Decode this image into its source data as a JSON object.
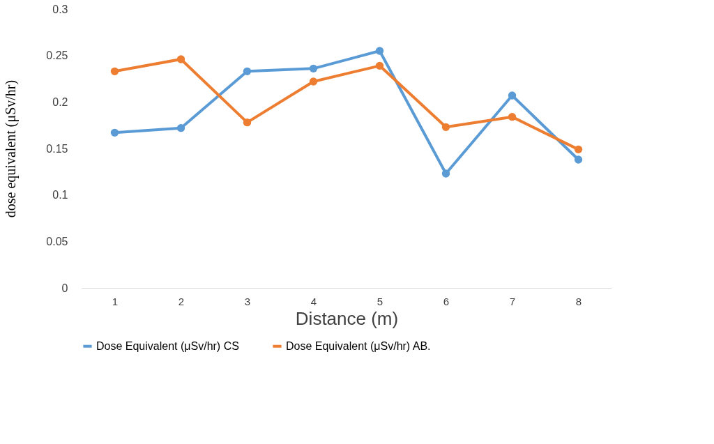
{
  "chart_data": {
    "type": "line",
    "xlabel": "Distance (m)",
    "ylabel": "dose equivalent (μSv/hr)",
    "categories": [
      "1",
      "2",
      "3",
      "4",
      "5",
      "6",
      "7",
      "8"
    ],
    "series": [
      {
        "name": "Dose Equivalent (μSv/hr) CS",
        "color": "#5b9bd5",
        "values": [
          0.167,
          0.172,
          0.233,
          0.236,
          0.255,
          0.123,
          0.207,
          0.138
        ]
      },
      {
        "name": "Dose Equivalent (μSv/hr) AB.",
        "color": "#ed7d31",
        "values": [
          0.233,
          0.246,
          0.178,
          0.222,
          0.239,
          0.173,
          0.184,
          0.149
        ]
      }
    ],
    "ylim": [
      0,
      0.3
    ],
    "yticks": [
      0,
      0.05,
      0.1,
      0.15,
      0.2,
      0.25,
      0.3
    ],
    "grid": false,
    "legend": "bottom",
    "marker": "circle",
    "line_style": "solid"
  }
}
